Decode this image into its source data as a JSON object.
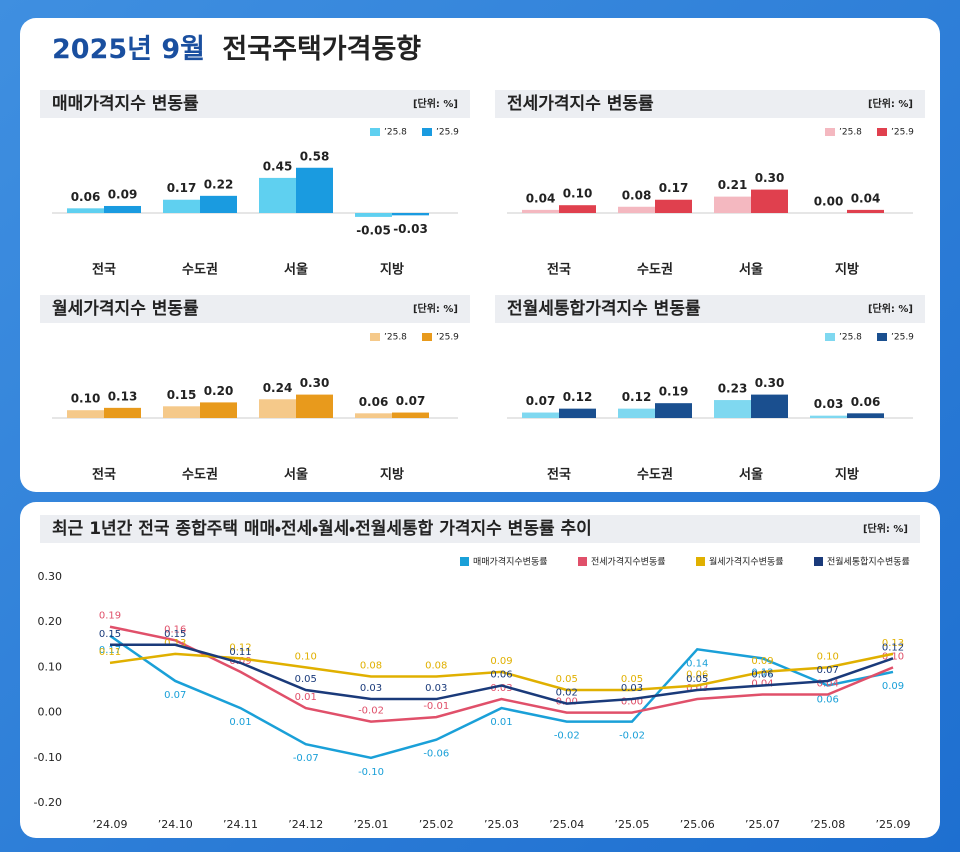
{
  "header": {
    "title_date": "2025년 9월",
    "title": "전국주택가격동향"
  },
  "chart_data": [
    {
      "type": "bar",
      "title": "매매가격지수 변동률",
      "unit": "[단위: %]",
      "categories": [
        "전국",
        "수도권",
        "서울",
        "지방"
      ],
      "series": [
        {
          "name": "’25.8",
          "color": "#5fd0f0",
          "values": [
            0.06,
            0.17,
            0.45,
            -0.05
          ],
          "value_labels": [
            "0.06",
            "0.17",
            "0.45",
            "-0.05"
          ]
        },
        {
          "name": "’25.9",
          "color": "#1a9be0",
          "values": [
            0.09,
            0.22,
            0.58,
            -0.03
          ],
          "value_labels": [
            "0.09",
            "0.22",
            "0.58",
            "-0.03"
          ]
        }
      ]
    },
    {
      "type": "bar",
      "title": "전세가격지수 변동률",
      "unit": "[단위: %]",
      "categories": [
        "전국",
        "수도권",
        "서울",
        "지방"
      ],
      "series": [
        {
          "name": "’25.8",
          "color": "#f4b8c0",
          "values": [
            0.04,
            0.08,
            0.21,
            0
          ],
          "value_labels": [
            "0.04",
            "0.08",
            "0.21",
            "0.00"
          ]
        },
        {
          "name": "’25.9",
          "color": "#e0404e",
          "values": [
            0.1,
            0.17,
            0.3,
            0.04
          ],
          "value_labels": [
            "0.10",
            "0.17",
            "0.30",
            "0.04"
          ]
        }
      ]
    },
    {
      "type": "bar",
      "title": "월세가격지수 변동률",
      "unit": "[단위: %]",
      "categories": [
        "전국",
        "수도권",
        "서울",
        "지방"
      ],
      "series": [
        {
          "name": "’25.8",
          "color": "#f5c98a",
          "values": [
            0.1,
            0.15,
            0.24,
            0.06
          ],
          "value_labels": [
            "0.10",
            "0.15",
            "0.24",
            "0.06"
          ]
        },
        {
          "name": "’25.9",
          "color": "#e89a1c",
          "values": [
            0.13,
            0.2,
            0.3,
            0.07
          ],
          "value_labels": [
            "0.13",
            "0.20",
            "0.30",
            "0.07"
          ]
        }
      ]
    },
    {
      "type": "bar",
      "title": "전월세통합가격지수 변동률",
      "unit": "[단위: %]",
      "categories": [
        "전국",
        "수도권",
        "서울",
        "지방"
      ],
      "series": [
        {
          "name": "’25.8",
          "color": "#7fd8f0",
          "values": [
            0.07,
            0.12,
            0.23,
            0.03
          ],
          "value_labels": [
            "0.07",
            "0.12",
            "0.23",
            "0.03"
          ]
        },
        {
          "name": "’25.9",
          "color": "#1a4f8f",
          "values": [
            0.12,
            0.19,
            0.3,
            0.06
          ],
          "value_labels": [
            "0.12",
            "0.19",
            "0.30",
            "0.06"
          ]
        }
      ]
    },
    {
      "type": "line",
      "title": "최근 1년간 전국 종합주택 매매・전세・월세・전월세통합 가격지수 변동률 추이",
      "unit": "[단위: %]",
      "categories": [
        "’24.09",
        "’24.10",
        "’24.11",
        "’24.12",
        "’25.01",
        "’25.02",
        "’25.03",
        "’25.04",
        "’25.05",
        "’25.06",
        "’25.07",
        "’25.08",
        "’25.09"
      ],
      "ylim": [
        -0.2,
        0.3
      ],
      "yticks": [
        {
          "value": 0.3,
          "label": "0.30"
        },
        {
          "value": 0.2,
          "label": "0.20"
        },
        {
          "value": 0.1,
          "label": "0.10"
        },
        {
          "value": 0,
          "label": "0.00"
        },
        {
          "value": -0.1,
          "label": "-0.10"
        },
        {
          "value": -0.2,
          "label": "-0.20"
        }
      ],
      "series": [
        {
          "name": "매매가격지수변동률",
          "color": "#1aa0d8",
          "values": [
            0.17,
            0.07,
            0.01,
            -0.07,
            -0.1,
            -0.06,
            0.01,
            -0.02,
            -0.02,
            0.14,
            0.12,
            0.06,
            0.09
          ],
          "value_labels": [
            "0.17",
            "0.07",
            "0.01",
            "-0.07",
            "-0.10",
            "-0.06",
            "0.01",
            "-0.02",
            "-0.02",
            "0.14",
            "0.12",
            "0.06",
            "0.09"
          ]
        },
        {
          "name": "전세가격지수변동률",
          "color": "#e0506a",
          "values": [
            0.19,
            0.16,
            0.09,
            0.01,
            -0.02,
            -0.01,
            0.03,
            0,
            0,
            0.03,
            0.04,
            0.04,
            0.1
          ],
          "value_labels": [
            "0.19",
            "0.16",
            "0.09",
            "0.01",
            "-0.02",
            "-0.01",
            "0.03",
            "0.00",
            "0.00",
            "0.03",
            "0.04",
            "0.04",
            "0.10"
          ]
        },
        {
          "name": "월세가격지수변동률",
          "color": "#e0b000",
          "values": [
            0.11,
            0.13,
            0.12,
            0.1,
            0.08,
            0.08,
            0.09,
            0.05,
            0.05,
            0.06,
            0.09,
            0.1,
            0.13
          ],
          "value_labels": [
            "0.11",
            "0.13",
            "0.12",
            "0.10",
            "0.08",
            "0.08",
            "0.09",
            "0.05",
            "0.05",
            "0.06",
            "0.09",
            "0.10",
            "0.13"
          ]
        },
        {
          "name": "전월세통합지수변동률",
          "color": "#1a3a7a",
          "values": [
            0.15,
            0.15,
            0.11,
            0.05,
            0.03,
            0.03,
            0.06,
            0.02,
            0.03,
            0.05,
            0.06,
            0.07,
            0.12
          ],
          "value_labels": [
            "0.15",
            "0.15",
            "0.11",
            "0.05",
            "0.03",
            "0.03",
            "0.06",
            "0.02",
            "0.03",
            "0.05",
            "0.06",
            "0.07",
            "0.12"
          ]
        }
      ]
    }
  ]
}
